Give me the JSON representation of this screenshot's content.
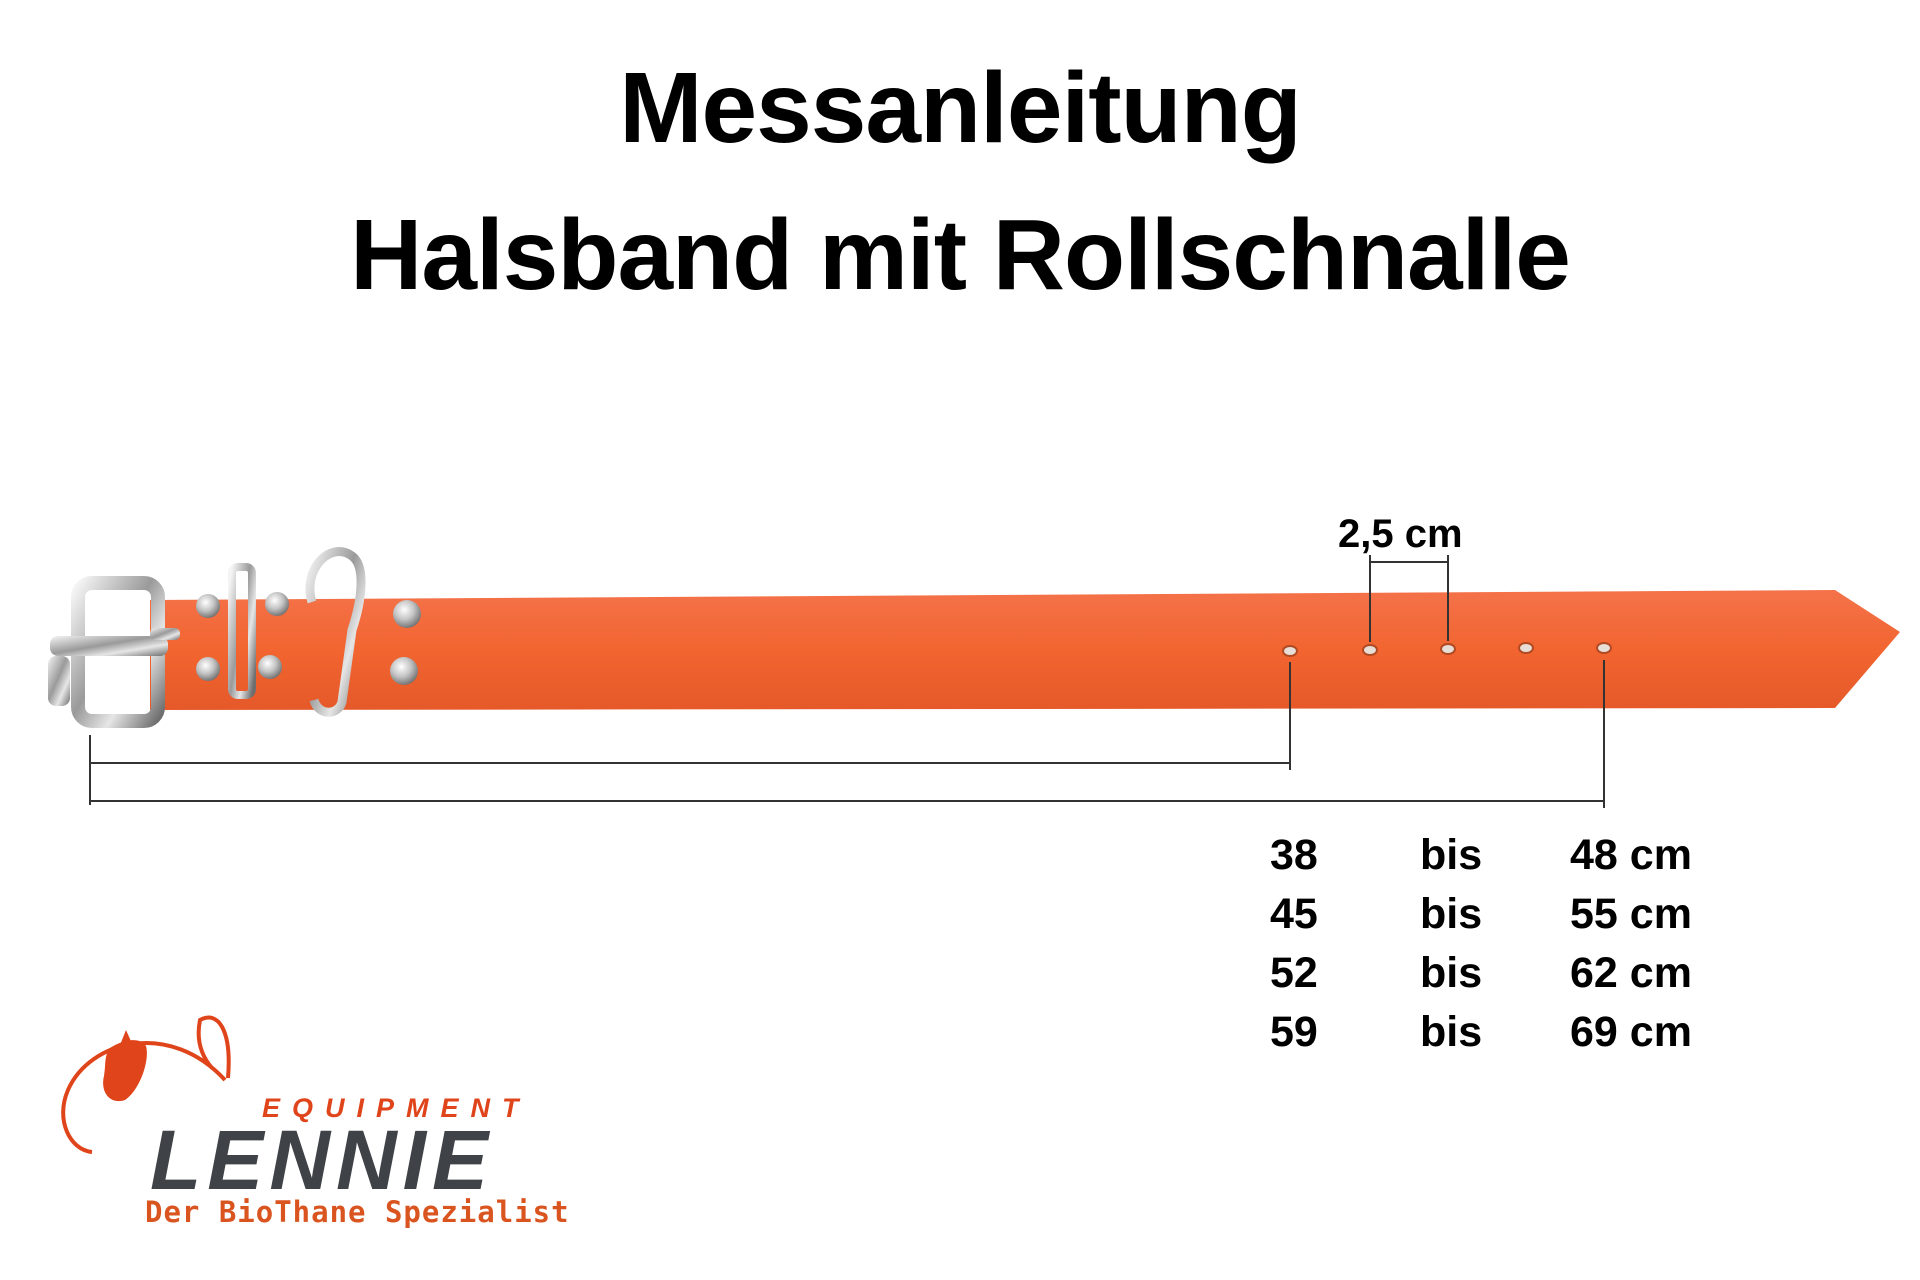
{
  "title": {
    "line1": "Messanleitung",
    "line2": "Halsband mit Rollschnalle"
  },
  "collar": {
    "color": "#f26530",
    "hole_count": 5,
    "hole_spacing_label": "2,5 cm"
  },
  "sizes": [
    {
      "min": "38",
      "sep": "bis",
      "max": "48 cm"
    },
    {
      "min": "45",
      "sep": "bis",
      "max": "55 cm"
    },
    {
      "min": "52",
      "sep": "bis",
      "max": "62 cm"
    },
    {
      "min": "59",
      "sep": "bis",
      "max": "69 cm"
    }
  ],
  "logo": {
    "word": "EQUIPMENT",
    "name": "LENNIE",
    "tagline": "Der BioThane Spezialist",
    "accent_color": "#e0441a",
    "name_color": "#3f4347"
  }
}
